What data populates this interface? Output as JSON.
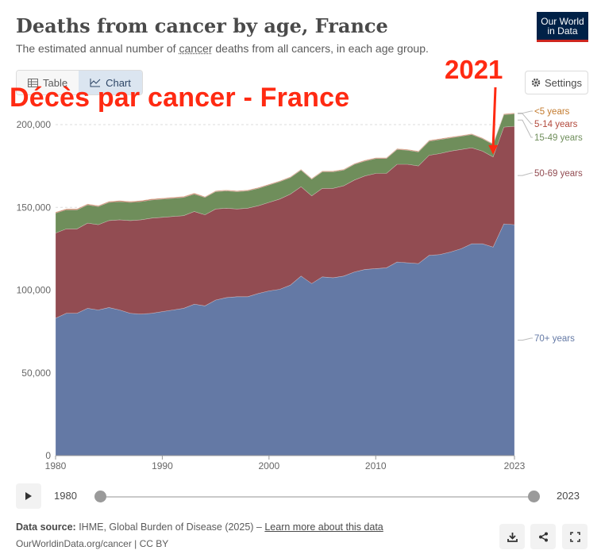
{
  "header": {
    "title": "Deaths from cancer by age, France",
    "subtitle_pre": "The estimated annual number of ",
    "subtitle_link": "cancer",
    "subtitle_post": " deaths from all cancers, in each age group.",
    "logo_line1": "Our World",
    "logo_line2": "in Data"
  },
  "tabs": [
    {
      "label": "Table",
      "icon": "table-icon"
    },
    {
      "label": "Chart",
      "icon": "chart-icon"
    }
  ],
  "settings_label": "Settings",
  "overlay": {
    "title": "Décès par cancer - France",
    "year": "2021",
    "color": "#ff2a12"
  },
  "chart_data": {
    "type": "area",
    "stacked": true,
    "x": [
      1980,
      1981,
      1982,
      1983,
      1984,
      1985,
      1986,
      1987,
      1988,
      1989,
      1990,
      1991,
      1992,
      1993,
      1994,
      1995,
      1996,
      1997,
      1998,
      1999,
      2000,
      2001,
      2002,
      2003,
      2004,
      2005,
      2006,
      2007,
      2008,
      2009,
      2010,
      2011,
      2012,
      2013,
      2014,
      2015,
      2016,
      2017,
      2018,
      2019,
      2020,
      2021,
      2022,
      2023
    ],
    "ylim": [
      0,
      200000
    ],
    "yticks": [
      "0",
      "50,000",
      "100,000",
      "150,000",
      "200,000"
    ],
    "xticks": [
      "1980",
      "1990",
      "2000",
      "2010",
      "2023"
    ],
    "grid": true,
    "series": [
      {
        "name": "70+ years",
        "color": "#6479a5",
        "values": [
          83000,
          86000,
          86000,
          89000,
          88000,
          89500,
          88000,
          86000,
          85500,
          86000,
          87000,
          88000,
          89000,
          91500,
          90500,
          94000,
          95500,
          96000,
          96000,
          98000,
          99500,
          100500,
          103000,
          108500,
          104000,
          108000,
          107500,
          108500,
          111000,
          112500,
          113000,
          113500,
          117000,
          116500,
          116000,
          121000,
          121500,
          123000,
          125000,
          128000,
          128000,
          126000,
          140000,
          139500
        ]
      },
      {
        "name": "50-69 years",
        "color": "#924c52",
        "values": [
          51500,
          51000,
          51000,
          51500,
          51500,
          52500,
          54500,
          56000,
          57000,
          57500,
          57000,
          56500,
          56000,
          56000,
          55000,
          55000,
          54000,
          53000,
          53500,
          53000,
          53500,
          54500,
          55000,
          54000,
          53000,
          53500,
          54000,
          54500,
          55500,
          56500,
          57500,
          57000,
          59000,
          59500,
          59000,
          60500,
          61000,
          61000,
          60000,
          58000,
          56000,
          54500,
          58500,
          59500
        ]
      },
      {
        "name": "15-49 years",
        "color": "#6f8e5b",
        "values": [
          12000,
          11500,
          11500,
          11000,
          11000,
          11000,
          11000,
          11000,
          11000,
          11000,
          11000,
          11000,
          11000,
          10500,
          10500,
          10500,
          10500,
          10500,
          10500,
          10500,
          10500,
          10500,
          10000,
          10000,
          10000,
          10000,
          10000,
          9500,
          9500,
          9000,
          9000,
          9000,
          9000,
          8500,
          8500,
          8500,
          8500,
          8000,
          8000,
          8000,
          7500,
          7500,
          7500,
          7500
        ]
      },
      {
        "name": "5-14 years",
        "color": "#b2493c",
        "values": [
          400,
          400,
          400,
          400,
          400,
          400,
          400,
          400,
          400,
          400,
          400,
          400,
          400,
          400,
          350,
          350,
          350,
          350,
          350,
          350,
          350,
          350,
          350,
          350,
          350,
          350,
          350,
          350,
          350,
          350,
          350,
          350,
          350,
          350,
          350,
          350,
          350,
          350,
          350,
          350,
          350,
          350,
          350,
          350
        ]
      },
      {
        "name": "<5 years",
        "color": "#c37a2d",
        "values": [
          200,
          200,
          200,
          200,
          200,
          200,
          200,
          200,
          200,
          200,
          200,
          200,
          200,
          200,
          150,
          150,
          150,
          150,
          150,
          150,
          150,
          150,
          150,
          150,
          150,
          150,
          150,
          150,
          150,
          150,
          150,
          150,
          150,
          150,
          150,
          150,
          150,
          150,
          150,
          150,
          150,
          150,
          150,
          150
        ]
      }
    ],
    "legend_order": [
      "<5 years",
      "5-14 years",
      "15-49 years",
      "50-69 years",
      "70+ years"
    ],
    "legend_placement": "right"
  },
  "timeline": {
    "start": "1980",
    "end": "2023"
  },
  "footer": {
    "source_label": "Data source:",
    "source_text": " IHME, Global Burden of Disease (2025) – ",
    "learn_more": "Learn more about this data",
    "credit": "OurWorldinData.org/cancer | CC BY"
  }
}
